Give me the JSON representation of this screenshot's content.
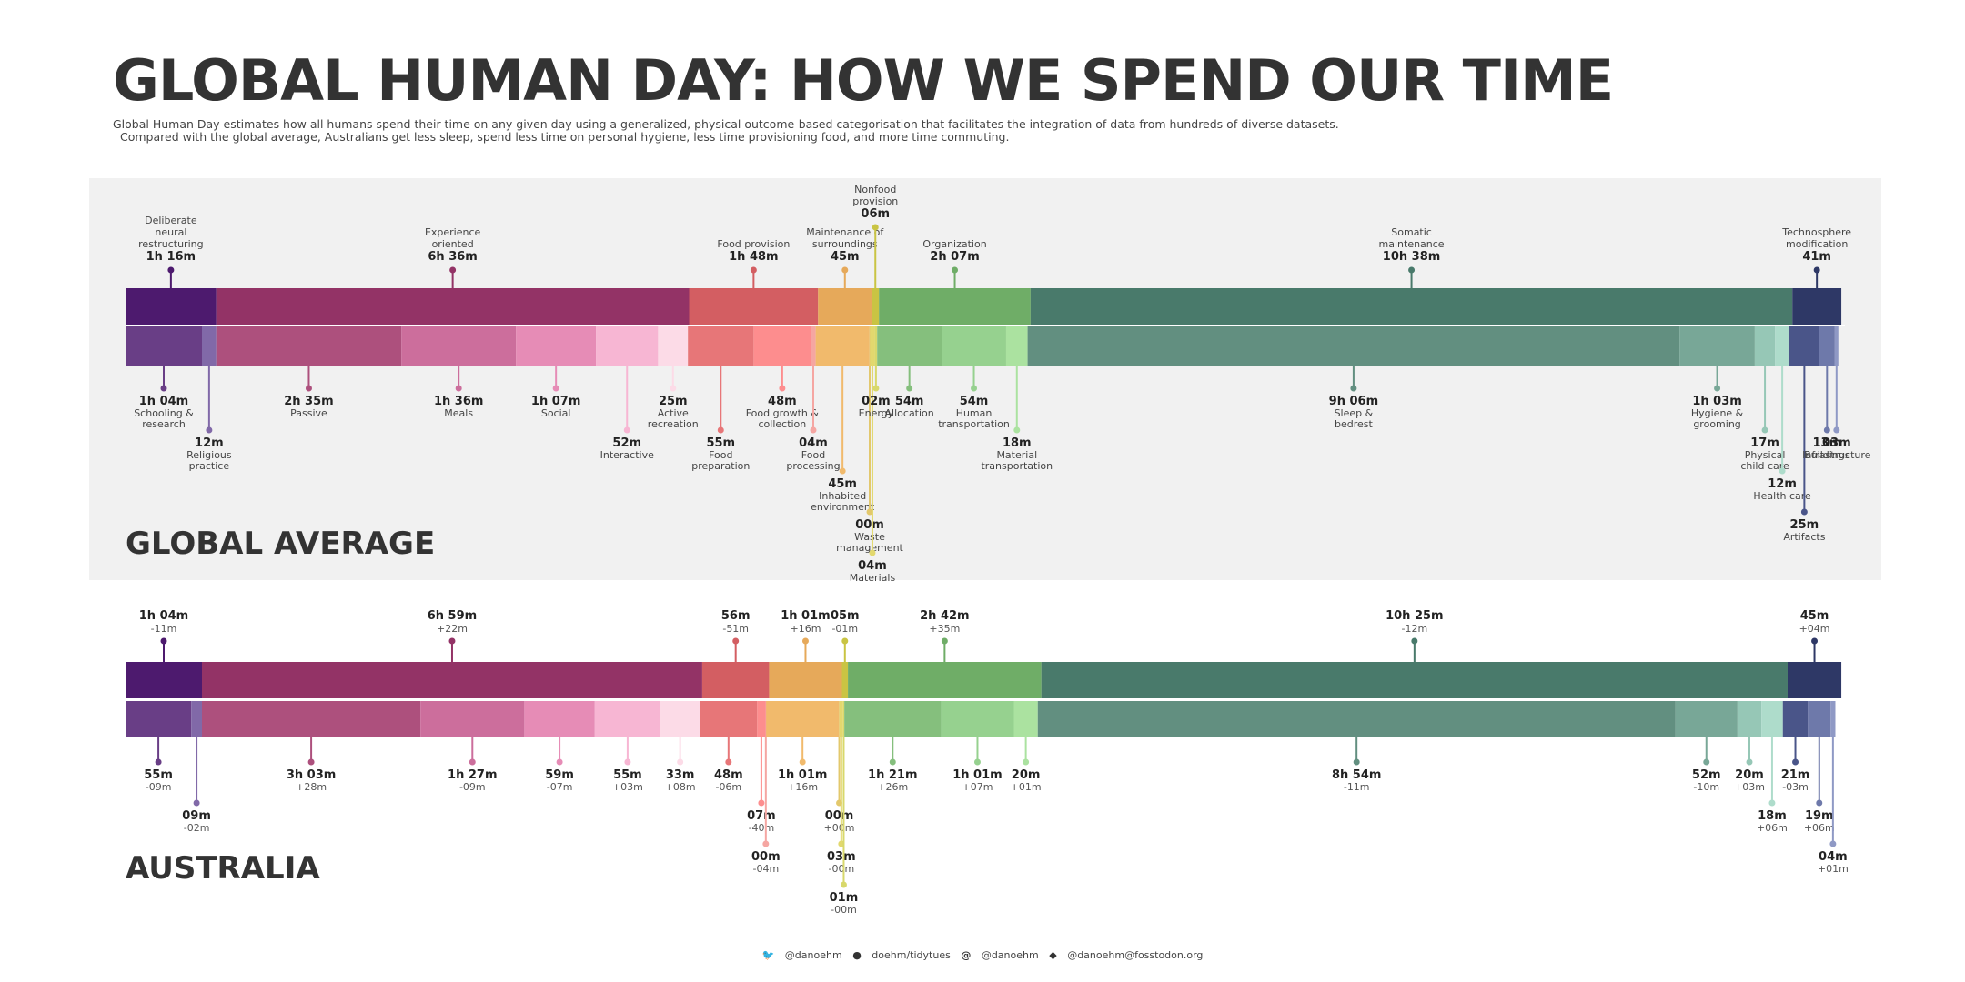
{
  "title": "GLOBAL HUMAN DAY: HOW WE SPEND OUR TIME",
  "subtitle": [
    "Global Human Day estimates how all humans spend their time on any given day using a generalized, physical outcome-based categorisation that facilitates the integration of data from hundreds of diverse datasets.",
    "Compared with the global average, Australians get less sleep, spend less time on personal hygiene, less time provisioning food, and more time commuting."
  ],
  "footer": {
    "twitter": "@danoehm",
    "github": "doehm/tidytues",
    "social": "@danoehm",
    "mastodon": "@danoehm@fosstodon.org",
    "icons": [
      "twitter-icon",
      "github-icon",
      "at-icon",
      "mastodon-icon"
    ]
  },
  "chart_data": [
    {
      "type": "bar",
      "title": "GLOBAL AVERAGE",
      "unit": "minutes per day",
      "xlim": [
        0,
        1440
      ],
      "categories": [
        {
          "name": "Deliberate neural restructuring",
          "label": "1h 16m",
          "minutes": 76,
          "color": "#4d1a6e"
        },
        {
          "name": "Experience oriented",
          "label": "6h 36m",
          "minutes": 396,
          "color": "#933366"
        },
        {
          "name": "Food provision",
          "label": "1h 48m",
          "minutes": 108,
          "color": "#d35e62"
        },
        {
          "name": "Maintenance of surroundings",
          "label": "45m",
          "minutes": 45,
          "color": "#e6a95a"
        },
        {
          "name": "Nonfood provision",
          "label": "06m",
          "minutes": 6,
          "color": "#c9c443"
        },
        {
          "name": "Organization",
          "label": "2h 07m",
          "minutes": 127,
          "color": "#6fad67"
        },
        {
          "name": "Somatic maintenance",
          "label": "10h 38m",
          "minutes": 638,
          "color": "#497a6b"
        },
        {
          "name": "Technosphere modification",
          "label": "41m",
          "minutes": 41,
          "color": "#2e3866"
        }
      ],
      "subcategories": [
        {
          "name": "Schooling & research",
          "label": "1h 04m",
          "minutes": 64,
          "color": "#693e86"
        },
        {
          "name": "Religious practice",
          "label": "12m",
          "minutes": 12,
          "color": "#8169a8"
        },
        {
          "name": "Passive",
          "label": "2h 35m",
          "minutes": 155,
          "color": "#ad507d"
        },
        {
          "name": "Meals",
          "label": "1h 36m",
          "minutes": 96,
          "color": "#cc6e9c"
        },
        {
          "name": "Social",
          "label": "1h 07m",
          "minutes": 67,
          "color": "#e68cb6"
        },
        {
          "name": "Interactive",
          "label": "52m",
          "minutes": 52,
          "color": "#f7b6d3"
        },
        {
          "name": "Active recreation",
          "label": "25m",
          "minutes": 25,
          "color": "#fcdbe7"
        },
        {
          "name": "Food preparation",
          "label": "55m",
          "minutes": 55,
          "color": "#e77678"
        },
        {
          "name": "Food growth & collection",
          "label": "48m",
          "minutes": 48,
          "color": "#fd8d8e"
        },
        {
          "name": "Food processing",
          "label": "04m",
          "minutes": 4,
          "color": "#f5a6a2"
        },
        {
          "name": "Inhabited environment",
          "label": "45m",
          "minutes": 45,
          "color": "#f1ba6c"
        },
        {
          "name": "Waste management",
          "label": "00m",
          "minutes": 0.5,
          "color": "#e3c86c"
        },
        {
          "name": "Materials",
          "label": "04m",
          "minutes": 4,
          "color": "#e2d86e"
        },
        {
          "name": "Energy",
          "label": "02m",
          "minutes": 2,
          "color": "#d8d86b"
        },
        {
          "name": "Allocation",
          "label": "54m",
          "minutes": 54,
          "color": "#85bf7d"
        },
        {
          "name": "Human transportation",
          "label": "54m",
          "minutes": 54,
          "color": "#96d18f"
        },
        {
          "name": "Material transportation",
          "label": "18m",
          "minutes": 18,
          "color": "#abe2a0"
        },
        {
          "name": "Sleep & bedrest",
          "label": "9h 06m",
          "minutes": 546,
          "color": "#628f80"
        },
        {
          "name": "Hygiene & grooming",
          "label": "1h 03m",
          "minutes": 63,
          "color": "#78a797"
        },
        {
          "name": "Physical child care",
          "label": "17m",
          "minutes": 17,
          "color": "#96c7b6"
        },
        {
          "name": "Health care",
          "label": "12m",
          "minutes": 12,
          "color": "#aedccb"
        },
        {
          "name": "Artifacts",
          "label": "25m",
          "minutes": 25,
          "color": "#4a5589"
        },
        {
          "name": "Buildings",
          "label": "13m",
          "minutes": 13,
          "color": "#6e79aa"
        },
        {
          "name": "Infrastructure",
          "label": "03m",
          "minutes": 3,
          "color": "#8f99c5"
        }
      ]
    },
    {
      "type": "bar",
      "title": "AUSTRALIA",
      "unit": "minutes per day",
      "xlim": [
        0,
        1440
      ],
      "categories": [
        {
          "label": "1h 04m",
          "diff": "-11m",
          "minutes": 64,
          "color": "#4d1a6e"
        },
        {
          "label": "6h 59m",
          "diff": "+22m",
          "minutes": 419,
          "color": "#933366"
        },
        {
          "label": "56m",
          "diff": "-51m",
          "minutes": 56,
          "color": "#d35e62"
        },
        {
          "label": "1h 01m",
          "diff": "+16m",
          "minutes": 61,
          "color": "#e6a95a"
        },
        {
          "label": "05m",
          "diff": "-01m",
          "minutes": 5,
          "color": "#c9c443"
        },
        {
          "label": "2h 42m",
          "diff": "+35m",
          "minutes": 162,
          "color": "#6fad67"
        },
        {
          "label": "10h 25m",
          "diff": "-12m",
          "minutes": 625,
          "color": "#497a6b"
        },
        {
          "label": "45m",
          "diff": "+04m",
          "minutes": 45,
          "color": "#2e3866"
        }
      ],
      "subcategories": [
        {
          "label": "55m",
          "diff": "-09m",
          "minutes": 55,
          "color": "#693e86"
        },
        {
          "label": "09m",
          "diff": "-02m",
          "minutes": 9,
          "color": "#8169a8"
        },
        {
          "label": "3h 03m",
          "diff": "+28m",
          "minutes": 183,
          "color": "#ad507d"
        },
        {
          "label": "1h 27m",
          "diff": "-09m",
          "minutes": 87,
          "color": "#cc6e9c"
        },
        {
          "label": "59m",
          "diff": "-07m",
          "minutes": 59,
          "color": "#e68cb6"
        },
        {
          "label": "55m",
          "diff": "+03m",
          "minutes": 55,
          "color": "#f7b6d3"
        },
        {
          "label": "33m",
          "diff": "+08m",
          "minutes": 33,
          "color": "#fcdbe7"
        },
        {
          "label": "48m",
          "diff": "-06m",
          "minutes": 48,
          "color": "#e77678"
        },
        {
          "label": "07m",
          "diff": "-40m",
          "minutes": 7,
          "color": "#fd8d8e"
        },
        {
          "label": "00m",
          "diff": "-04m",
          "minutes": 0.5,
          "color": "#f5a6a2"
        },
        {
          "label": "1h 01m",
          "diff": "+16m",
          "minutes": 61,
          "color": "#f1ba6c"
        },
        {
          "label": "00m",
          "diff": "+00m",
          "minutes": 0.5,
          "color": "#e3c86c"
        },
        {
          "label": "03m",
          "diff": "-00m",
          "minutes": 3,
          "color": "#e2d86e"
        },
        {
          "label": "01m",
          "diff": "-00m",
          "minutes": 1,
          "color": "#d8d86b"
        },
        {
          "label": "1h 21m",
          "diff": "+26m",
          "minutes": 81,
          "color": "#85bf7d"
        },
        {
          "label": "1h 01m",
          "diff": "+07m",
          "minutes": 61,
          "color": "#96d18f"
        },
        {
          "label": "20m",
          "diff": "+01m",
          "minutes": 20,
          "color": "#abe2a0"
        },
        {
          "label": "8h 54m",
          "diff": "-11m",
          "minutes": 534,
          "color": "#628f80"
        },
        {
          "label": "52m",
          "diff": "-10m",
          "minutes": 52,
          "color": "#78a797"
        },
        {
          "label": "20m",
          "diff": "+03m",
          "minutes": 20,
          "color": "#96c7b6"
        },
        {
          "label": "18m",
          "diff": "+06m",
          "minutes": 18,
          "color": "#aedccb"
        },
        {
          "label": "21m",
          "diff": "-03m",
          "minutes": 21,
          "color": "#4a5589"
        },
        {
          "label": "19m",
          "diff": "+06m",
          "minutes": 19,
          "color": "#6e79aa"
        },
        {
          "label": "04m",
          "diff": "+01m",
          "minutes": 4,
          "color": "#8f99c5"
        }
      ]
    }
  ]
}
